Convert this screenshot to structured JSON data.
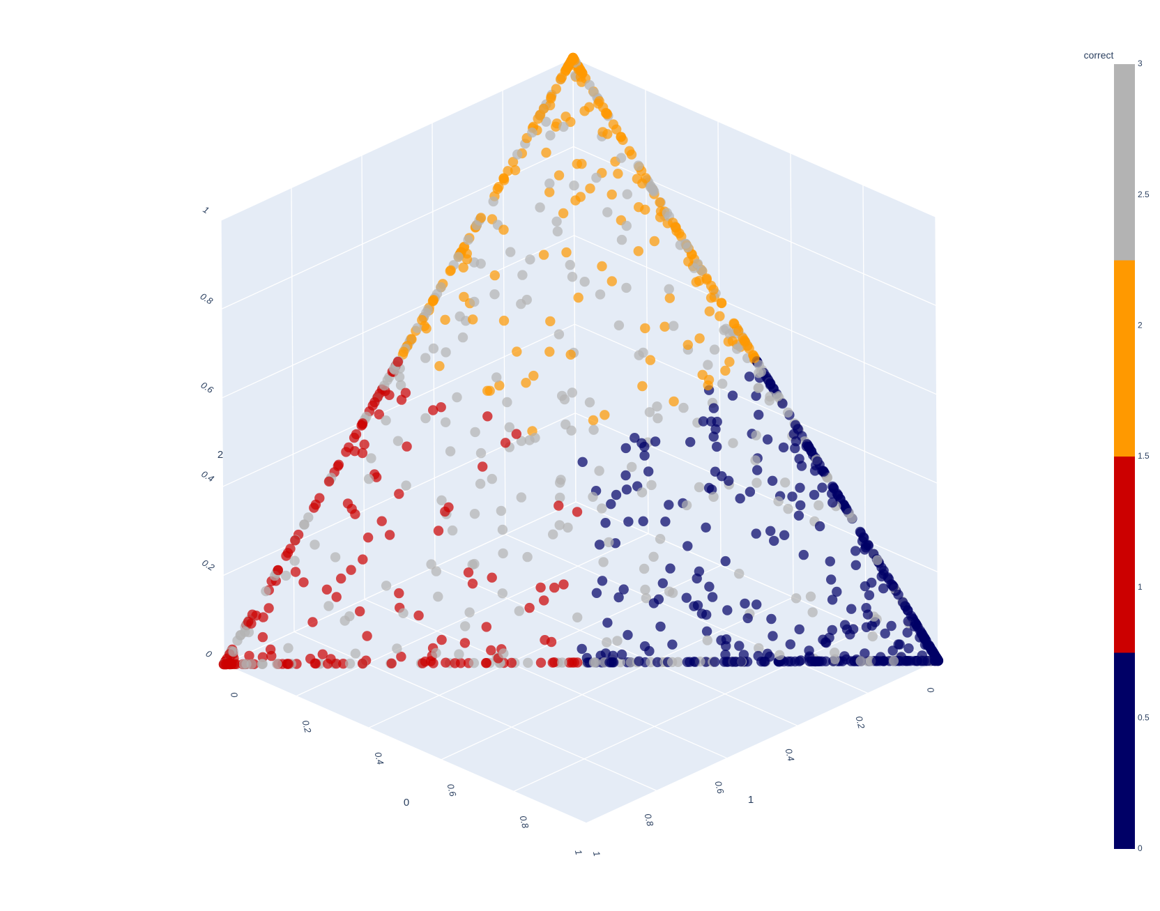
{
  "chart_data": {
    "type": "scatter3d",
    "axes": {
      "x": {
        "title": "0",
        "ticks": [
          "0",
          "0.2",
          "0.4",
          "0.6",
          "0.8",
          "1"
        ],
        "range": [
          0,
          1
        ]
      },
      "y": {
        "title": "1",
        "ticks": [
          "0",
          "0.2",
          "0.4",
          "0.6",
          "0.8",
          "1"
        ],
        "range": [
          0,
          1
        ]
      },
      "z": {
        "title": "2",
        "ticks": [
          "0",
          "0.2",
          "0.4",
          "0.6",
          "0.8",
          "1"
        ],
        "range": [
          0,
          1
        ]
      }
    },
    "grid": true,
    "background": "#e5ecf6",
    "colorbar": {
      "title": "correct",
      "position": "right",
      "range": [
        0,
        3
      ],
      "ticks": [
        "0",
        "0.5",
        "1",
        "1.5",
        "2",
        "2.5",
        "3"
      ],
      "bands": [
        {
          "from": 0,
          "to": 0.75,
          "color": "#000066"
        },
        {
          "from": 0.75,
          "to": 1.5,
          "color": "#cc0000"
        },
        {
          "from": 1.5,
          "to": 2.25,
          "color": "#ff9900"
        },
        {
          "from": 2.25,
          "to": 3,
          "color": "#b3b3b3"
        }
      ]
    },
    "marker_opacity": 0.7,
    "clusters": [
      {
        "correct": 0,
        "color": "#000066",
        "corner": "1",
        "count": 420
      },
      {
        "correct": 1,
        "color": "#cc0000",
        "corner": "0",
        "count": 180
      },
      {
        "correct": 2,
        "color": "#ff9900",
        "corner": "2",
        "count": 240
      },
      {
        "correct": 3,
        "color": "#b3b3b3",
        "corner": "mixed",
        "count": 380
      }
    ]
  }
}
